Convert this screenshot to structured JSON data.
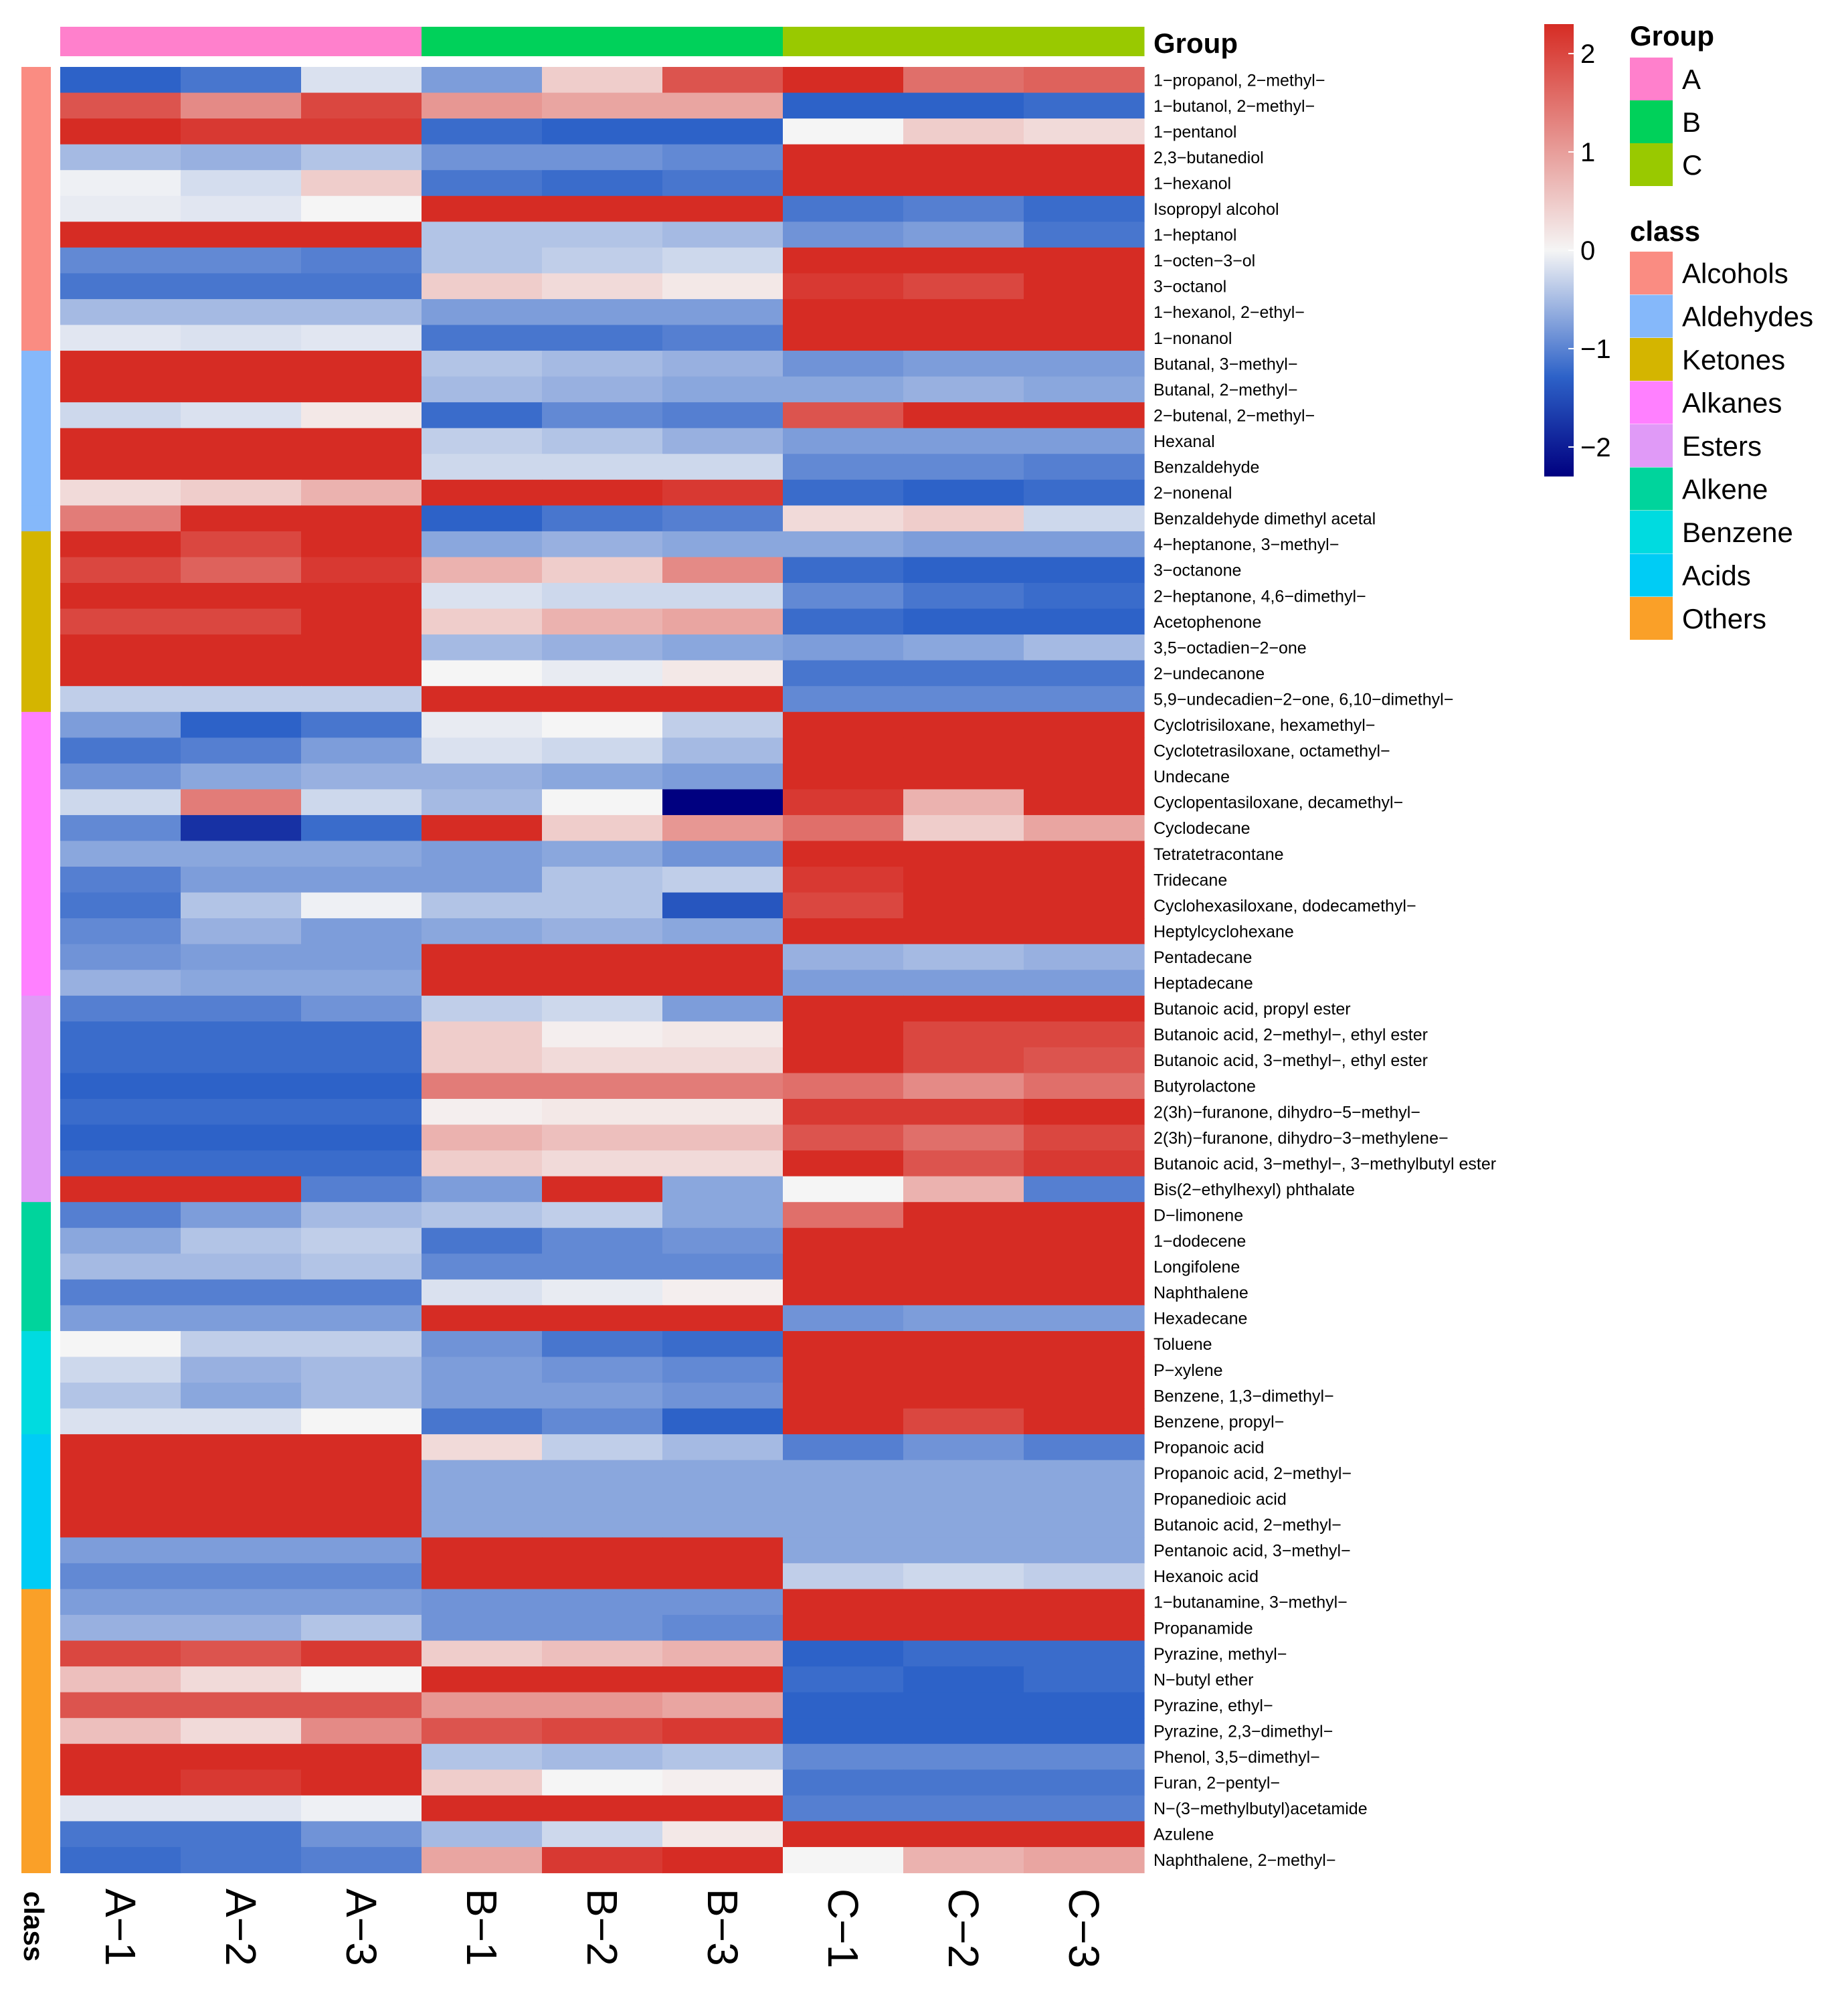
{
  "chart_data": {
    "type": "heatmap",
    "columns": [
      "A−1",
      "A−2",
      "A−3",
      "B−1",
      "B−2",
      "B−3",
      "C−1",
      "C−2",
      "C−3"
    ],
    "column_groups": [
      "A",
      "A",
      "A",
      "B",
      "B",
      "B",
      "C",
      "C",
      "C"
    ],
    "group_annotation_label": "Group",
    "class_annotation_label": "class",
    "color_scale": {
      "ticks": [
        "2",
        "1",
        "0",
        "−1",
        "−2"
      ],
      "tick_values": [
        2,
        1,
        0,
        -1,
        -2
      ],
      "range": [
        -2.3,
        2.3
      ],
      "low_color": "#000080",
      "mid_low_color": "#2d62c8",
      "zero_color": "#f5f5f5",
      "high_color": "#d62c24"
    },
    "legend_group": {
      "title": "Group",
      "items": [
        {
          "label": "A",
          "color": "#ff80cc"
        },
        {
          "label": "B",
          "color": "#00d15a"
        },
        {
          "label": "C",
          "color": "#99c900"
        }
      ]
    },
    "legend_class": {
      "title": "class",
      "items": [
        {
          "label": "Alcohols",
          "color": "#fa8c82"
        },
        {
          "label": "Aldehydes",
          "color": "#85b8fa"
        },
        {
          "label": "Ketones",
          "color": "#d4b500"
        },
        {
          "label": "Alkanes",
          "color": "#ff80ff"
        },
        {
          "label": "Esters",
          "color": "#e09af7"
        },
        {
          "label": "Alkene",
          "color": "#00d49c"
        },
        {
          "label": "Benzene",
          "color": "#00dbe0"
        },
        {
          "label": "Acids",
          "color": "#00ccf5"
        },
        {
          "label": "Others",
          "color": "#faa028"
        }
      ]
    },
    "rows": [
      {
        "name": "1−propanol, 2−methyl−",
        "class": "Alcohols",
        "values": [
          -1.5,
          -1.3,
          -0.2,
          -0.9,
          0.3,
          1.2,
          1.5,
          1.0,
          1.1
        ]
      },
      {
        "name": "1−butanol, 2−methyl−",
        "class": "Alcohols",
        "values": [
          1.2,
          0.8,
          1.3,
          0.7,
          0.6,
          0.6,
          -1.5,
          -1.5,
          -1.4
        ]
      },
      {
        "name": "1−pentanol",
        "class": "Alcohols",
        "values": [
          1.5,
          1.4,
          1.4,
          -1.4,
          -1.5,
          -1.5,
          0.0,
          0.3,
          0.2
        ]
      },
      {
        "name": "2,3−butanediol",
        "class": "Alcohols",
        "values": [
          -0.6,
          -0.7,
          -0.5,
          -1.0,
          -1.0,
          -1.1,
          1.5,
          1.5,
          1.5
        ]
      },
      {
        "name": "1−hexanol",
        "class": "Alcohols",
        "values": [
          -0.05,
          -0.25,
          0.3,
          -1.3,
          -1.4,
          -1.3,
          1.5,
          1.5,
          1.5
        ]
      },
      {
        "name": "Isopropyl alcohol",
        "class": "Alcohols",
        "values": [
          -0.1,
          -0.15,
          0.0,
          1.5,
          1.5,
          1.5,
          -1.3,
          -1.2,
          -1.4
        ]
      },
      {
        "name": "1−heptanol",
        "class": "Alcohols",
        "values": [
          1.5,
          1.5,
          1.5,
          -0.5,
          -0.5,
          -0.6,
          -1.0,
          -0.9,
          -1.3
        ]
      },
      {
        "name": "1−octen−3−ol",
        "class": "Alcohols",
        "values": [
          -1.1,
          -1.1,
          -1.2,
          -0.5,
          -0.4,
          -0.3,
          1.5,
          1.5,
          1.5
        ]
      },
      {
        "name": "3−octanol",
        "class": "Alcohols",
        "values": [
          -1.3,
          -1.3,
          -1.3,
          0.3,
          0.2,
          0.1,
          1.4,
          1.3,
          1.5
        ]
      },
      {
        "name": "1−hexanol, 2−ethyl−",
        "class": "Alcohols",
        "values": [
          -0.6,
          -0.6,
          -0.6,
          -0.9,
          -0.9,
          -0.9,
          1.5,
          1.5,
          1.5
        ]
      },
      {
        "name": "1−nonanol",
        "class": "Alcohols",
        "values": [
          -0.15,
          -0.2,
          -0.15,
          -1.3,
          -1.3,
          -1.2,
          1.5,
          1.5,
          1.5
        ]
      },
      {
        "name": "Butanal, 3−methyl−",
        "class": "Aldehydes",
        "values": [
          1.5,
          1.5,
          1.5,
          -0.5,
          -0.6,
          -0.7,
          -1.0,
          -0.9,
          -0.9
        ]
      },
      {
        "name": "Butanal, 2−methyl−",
        "class": "Aldehydes",
        "values": [
          1.5,
          1.5,
          1.5,
          -0.6,
          -0.7,
          -0.8,
          -0.8,
          -0.7,
          -0.8
        ]
      },
      {
        "name": "2−butenal, 2−methyl−",
        "class": "Aldehydes",
        "values": [
          -0.3,
          -0.2,
          0.1,
          -1.4,
          -1.1,
          -1.2,
          1.2,
          1.5,
          1.6
        ]
      },
      {
        "name": "Hexanal",
        "class": "Aldehydes",
        "values": [
          1.5,
          1.5,
          1.5,
          -0.4,
          -0.5,
          -0.7,
          -0.9,
          -0.9,
          -0.9
        ]
      },
      {
        "name": "Benzaldehyde",
        "class": "Aldehydes",
        "values": [
          1.5,
          1.5,
          1.5,
          -0.3,
          -0.3,
          -0.3,
          -1.1,
          -1.1,
          -1.2
        ]
      },
      {
        "name": "2−nonenal",
        "class": "Aldehydes",
        "values": [
          0.2,
          0.3,
          0.5,
          1.5,
          1.5,
          1.4,
          -1.4,
          -1.5,
          -1.4
        ]
      },
      {
        "name": "Benzaldehyde dimethyl acetal",
        "class": "Aldehydes",
        "values": [
          0.9,
          1.5,
          1.5,
          -1.5,
          -1.3,
          -1.2,
          0.2,
          0.3,
          -0.3
        ]
      },
      {
        "name": "4−heptanone, 3−methyl−",
        "class": "Ketones",
        "values": [
          1.5,
          1.3,
          1.6,
          -0.8,
          -0.7,
          -0.8,
          -0.8,
          -0.9,
          -0.9
        ]
      },
      {
        "name": "3−octanone",
        "class": "Ketones",
        "values": [
          1.3,
          1.1,
          1.4,
          0.5,
          0.3,
          0.8,
          -1.4,
          -1.5,
          -1.5
        ]
      },
      {
        "name": "2−heptanone, 4,6−dimethyl−",
        "class": "Ketones",
        "values": [
          1.5,
          1.5,
          1.5,
          -0.2,
          -0.3,
          -0.3,
          -1.1,
          -1.3,
          -1.4
        ]
      },
      {
        "name": "Acetophenone",
        "class": "Ketones",
        "values": [
          1.3,
          1.3,
          1.5,
          0.3,
          0.5,
          0.6,
          -1.4,
          -1.5,
          -1.5
        ]
      },
      {
        "name": "3,5−octadien−2−one",
        "class": "Ketones",
        "values": [
          1.5,
          1.5,
          1.5,
          -0.6,
          -0.7,
          -0.8,
          -0.9,
          -0.8,
          -0.6
        ]
      },
      {
        "name": "2−undecanone",
        "class": "Ketones",
        "values": [
          1.5,
          1.5,
          1.5,
          0.0,
          -0.1,
          0.1,
          -1.3,
          -1.3,
          -1.3
        ]
      },
      {
        "name": "5,9−undecadien−2−one, 6,10−dimethyl−",
        "class": "Ketones",
        "values": [
          -0.4,
          -0.4,
          -0.4,
          1.5,
          1.5,
          1.5,
          -1.1,
          -1.1,
          -1.1
        ]
      },
      {
        "name": "Cyclotrisiloxane, hexamethyl−",
        "class": "Alkanes",
        "values": [
          -0.9,
          -1.5,
          -1.3,
          -0.1,
          0.0,
          -0.4,
          1.5,
          1.5,
          1.5
        ]
      },
      {
        "name": "Cyclotetrasiloxane, octamethyl−",
        "class": "Alkanes",
        "values": [
          -1.3,
          -1.2,
          -0.9,
          -0.2,
          -0.3,
          -0.6,
          1.5,
          1.5,
          1.5
        ]
      },
      {
        "name": "Undecane",
        "class": "Alkanes",
        "values": [
          -1.0,
          -0.8,
          -0.7,
          -0.7,
          -0.8,
          -0.9,
          1.5,
          1.5,
          1.5
        ]
      },
      {
        "name": "Cyclopentasiloxane, decamethyl−",
        "class": "Alkanes",
        "values": [
          -0.3,
          0.9,
          -0.3,
          -0.6,
          0.0,
          -2.3,
          1.4,
          0.5,
          1.5
        ]
      },
      {
        "name": "Cyclodecane",
        "class": "Alkanes",
        "values": [
          -1.1,
          -1.9,
          -1.4,
          1.5,
          0.3,
          0.7,
          1.0,
          0.3,
          0.6
        ]
      },
      {
        "name": "Tetratetracontane",
        "class": "Alkanes",
        "values": [
          -0.8,
          -0.8,
          -0.8,
          -0.9,
          -0.8,
          -1.0,
          1.5,
          1.5,
          1.5
        ]
      },
      {
        "name": "Tridecane",
        "class": "Alkanes",
        "values": [
          -1.2,
          -0.9,
          -0.9,
          -0.9,
          -0.5,
          -0.4,
          1.4,
          1.6,
          1.5
        ]
      },
      {
        "name": "Cyclohexasiloxane, dodecamethyl−",
        "class": "Alkanes",
        "values": [
          -1.3,
          -0.5,
          -0.05,
          -0.5,
          -0.5,
          -1.6,
          1.3,
          1.5,
          1.6
        ]
      },
      {
        "name": "Heptylcyclohexane",
        "class": "Alkanes",
        "values": [
          -1.1,
          -0.7,
          -0.9,
          -0.8,
          -0.7,
          -0.8,
          1.5,
          1.6,
          1.5
        ]
      },
      {
        "name": "Pentadecane",
        "class": "Alkanes",
        "values": [
          -1.0,
          -0.9,
          -0.9,
          1.5,
          1.5,
          1.5,
          -0.7,
          -0.6,
          -0.7
        ]
      },
      {
        "name": "Heptadecane",
        "class": "Alkanes",
        "values": [
          -0.7,
          -0.8,
          -0.8,
          1.5,
          1.6,
          1.6,
          -0.9,
          -0.9,
          -0.9
        ]
      },
      {
        "name": "Butanoic acid, propyl ester",
        "class": "Esters",
        "values": [
          -1.2,
          -1.2,
          -1.0,
          -0.4,
          -0.3,
          -0.9,
          1.5,
          1.6,
          1.5
        ]
      },
      {
        "name": "Butanoic acid, 2−methyl−, ethyl ester",
        "class": "Esters",
        "values": [
          -1.4,
          -1.4,
          -1.4,
          0.3,
          0.05,
          0.1,
          1.5,
          1.3,
          1.3
        ]
      },
      {
        "name": "Butanoic acid, 3−methyl−, ethyl ester",
        "class": "Esters",
        "values": [
          -1.4,
          -1.4,
          -1.4,
          0.3,
          0.2,
          0.2,
          1.5,
          1.3,
          1.2
        ]
      },
      {
        "name": "Butyrolactone",
        "class": "Esters",
        "values": [
          -1.5,
          -1.5,
          -1.5,
          0.9,
          0.9,
          0.9,
          1.0,
          0.8,
          1.0
        ]
      },
      {
        "name": "2(3h)−furanone, dihydro−5−methyl−",
        "class": "Esters",
        "values": [
          -1.4,
          -1.4,
          -1.4,
          0.05,
          0.1,
          0.1,
          1.4,
          1.4,
          1.5
        ]
      },
      {
        "name": "2(3h)−furanone, dihydro−3−methylene−",
        "class": "Esters",
        "values": [
          -1.5,
          -1.5,
          -1.5,
          0.5,
          0.4,
          0.4,
          1.2,
          1.0,
          1.3
        ]
      },
      {
        "name": "Butanoic acid, 3−methyl−, 3−methylbutyl ester",
        "class": "Esters",
        "values": [
          -1.4,
          -1.4,
          -1.4,
          0.3,
          0.2,
          0.2,
          1.5,
          1.2,
          1.4
        ]
      },
      {
        "name": "Bis(2−ethylhexyl) phthalate",
        "class": "Esters",
        "values": [
          1.5,
          1.5,
          -1.2,
          -0.9,
          1.5,
          -0.8,
          0.0,
          0.5,
          -1.2
        ]
      },
      {
        "name": "D−limonene",
        "class": "Alkene",
        "values": [
          -1.2,
          -0.9,
          -0.6,
          -0.5,
          -0.4,
          -0.8,
          1.0,
          1.8,
          1.5
        ]
      },
      {
        "name": "1−dodecene",
        "class": "Alkene",
        "values": [
          -0.8,
          -0.5,
          -0.4,
          -1.3,
          -1.1,
          -1.0,
          1.5,
          1.5,
          1.5
        ]
      },
      {
        "name": "Longifolene",
        "class": "Alkene",
        "values": [
          -0.6,
          -0.6,
          -0.5,
          -1.1,
          -1.1,
          -1.1,
          1.5,
          1.5,
          1.5
        ]
      },
      {
        "name": "Naphthalene",
        "class": "Alkene",
        "values": [
          -1.2,
          -1.2,
          -1.2,
          -0.2,
          -0.1,
          0.05,
          1.5,
          1.5,
          1.5
        ]
      },
      {
        "name": "Hexadecane",
        "class": "Alkene",
        "values": [
          -0.9,
          -0.9,
          -0.9,
          1.5,
          1.5,
          1.5,
          -1.0,
          -0.9,
          -0.9
        ]
      },
      {
        "name": "Toluene",
        "class": "Benzene",
        "values": [
          0.0,
          -0.4,
          -0.4,
          -1.0,
          -1.3,
          -1.4,
          1.5,
          1.5,
          1.6
        ]
      },
      {
        "name": "P−xylene",
        "class": "Benzene",
        "values": [
          -0.3,
          -0.7,
          -0.6,
          -0.9,
          -1.0,
          -1.1,
          1.5,
          1.7,
          1.5
        ]
      },
      {
        "name": "Benzene, 1,3−dimethyl−",
        "class": "Benzene",
        "values": [
          -0.5,
          -0.8,
          -0.6,
          -0.9,
          -0.9,
          -1.0,
          1.5,
          1.6,
          1.5
        ]
      },
      {
        "name": "Benzene, propyl−",
        "class": "Benzene",
        "values": [
          -0.2,
          -0.2,
          0.0,
          -1.3,
          -1.1,
          -1.5,
          1.5,
          1.3,
          1.6
        ]
      },
      {
        "name": "Propanoic acid",
        "class": "Acids",
        "values": [
          1.5,
          1.5,
          1.5,
          0.2,
          -0.4,
          -0.6,
          -1.2,
          -1.0,
          -1.2
        ]
      },
      {
        "name": "Propanoic acid, 2−methyl−",
        "class": "Acids",
        "values": [
          1.5,
          1.5,
          1.5,
          -0.8,
          -0.8,
          -0.8,
          -0.8,
          -0.8,
          -0.8
        ]
      },
      {
        "name": "Propanedioic acid",
        "class": "Acids",
        "values": [
          1.7,
          1.5,
          1.5,
          -0.8,
          -0.8,
          -0.8,
          -0.8,
          -0.8,
          -0.8
        ]
      },
      {
        "name": "Butanoic acid, 2−methyl−",
        "class": "Acids",
        "values": [
          1.5,
          1.5,
          1.5,
          -0.8,
          -0.8,
          -0.8,
          -0.8,
          -0.8,
          -0.8
        ]
      },
      {
        "name": "Pentanoic acid, 3−methyl−",
        "class": "Acids",
        "values": [
          -0.9,
          -0.9,
          -0.9,
          1.5,
          1.5,
          1.5,
          -0.8,
          -0.8,
          -0.8
        ]
      },
      {
        "name": "Hexanoic acid",
        "class": "Acids",
        "values": [
          -1.1,
          -1.1,
          -1.1,
          1.7,
          1.5,
          1.5,
          -0.4,
          -0.3,
          -0.4
        ]
      },
      {
        "name": "1−butanamine, 3−methyl−",
        "class": "Others",
        "values": [
          -0.9,
          -0.9,
          -0.9,
          -1.0,
          -1.0,
          -1.0,
          1.5,
          1.6,
          1.6
        ]
      },
      {
        "name": "Propanamide",
        "class": "Others",
        "values": [
          -0.7,
          -0.7,
          -0.5,
          -1.0,
          -1.0,
          -1.1,
          1.5,
          1.5,
          1.5
        ]
      },
      {
        "name": "Pyrazine, methyl−",
        "class": "Others",
        "values": [
          1.3,
          1.2,
          1.4,
          0.3,
          0.4,
          0.5,
          -1.5,
          -1.4,
          -1.4
        ]
      },
      {
        "name": "N−butyl ether",
        "class": "Others",
        "values": [
          0.4,
          0.2,
          0.0,
          1.5,
          1.5,
          1.5,
          -1.4,
          -1.5,
          -1.4
        ]
      },
      {
        "name": "Pyrazine, ethyl−",
        "class": "Others",
        "values": [
          1.2,
          1.2,
          1.2,
          0.7,
          0.7,
          0.6,
          -1.5,
          -1.5,
          -1.5
        ]
      },
      {
        "name": "Pyrazine, 2,3−dimethyl−",
        "class": "Others",
        "values": [
          0.4,
          0.2,
          0.8,
          1.2,
          1.3,
          1.4,
          -1.5,
          -1.5,
          -1.5
        ]
      },
      {
        "name": "Phenol, 3,5−dimethyl−",
        "class": "Others",
        "values": [
          1.5,
          1.5,
          1.5,
          -0.5,
          -0.6,
          -0.5,
          -1.1,
          -1.1,
          -1.1
        ]
      },
      {
        "name": "Furan, 2−pentyl−",
        "class": "Others",
        "values": [
          1.5,
          1.4,
          1.5,
          0.3,
          0.0,
          0.05,
          -1.3,
          -1.3,
          -1.3
        ]
      },
      {
        "name": "N−(3−methylbutyl)acetamide",
        "class": "Others",
        "values": [
          -0.15,
          -0.15,
          -0.05,
          1.5,
          1.5,
          1.5,
          -1.2,
          -1.2,
          -1.2
        ]
      },
      {
        "name": "Azulene",
        "class": "Others",
        "values": [
          -1.3,
          -1.3,
          -1.0,
          -0.6,
          -0.3,
          0.1,
          1.5,
          1.5,
          1.6
        ]
      },
      {
        "name": "Naphthalene, 2−methyl−",
        "class": "Others",
        "values": [
          -1.4,
          -1.3,
          -1.2,
          0.6,
          1.4,
          1.5,
          0.0,
          0.5,
          0.6
        ]
      }
    ]
  }
}
